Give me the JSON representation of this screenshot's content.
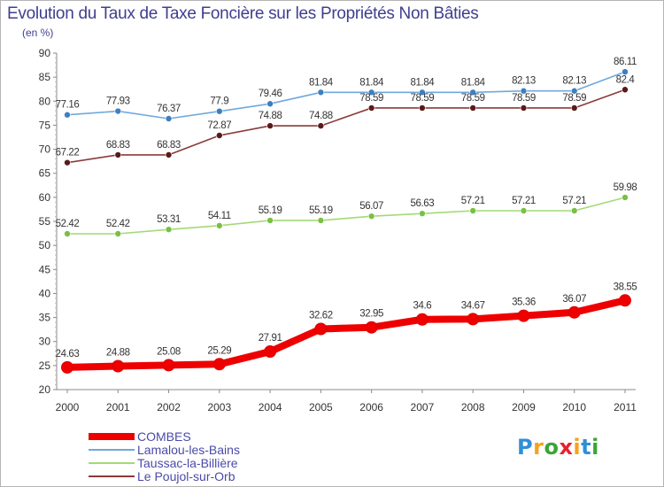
{
  "header": {
    "title": "Evolution du Taux de Taxe Foncière sur les Propriétés Non Bâties",
    "subtitle": "(en %)"
  },
  "logo": {
    "text": "Proxiti",
    "colors": [
      "#2f8fd8",
      "#f7a21b",
      "#3aa535",
      "#e8212e",
      "#f7a21b",
      "#2f8fd8",
      "#3aa535"
    ]
  },
  "chart_data": {
    "type": "line",
    "categories": [
      "2000",
      "2001",
      "2002",
      "2003",
      "2004",
      "2005",
      "2006",
      "2007",
      "2008",
      "2009",
      "2010",
      "2011"
    ],
    "ylim": [
      20,
      90
    ],
    "yticks": [
      "20",
      "25",
      "30",
      "35",
      "40",
      "45",
      "50",
      "55",
      "60",
      "65",
      "70",
      "75",
      "80",
      "85",
      "90"
    ],
    "grid": false,
    "legend_position": "bottom-left",
    "series": [
      {
        "name": "COMBES",
        "color": "#ee0000",
        "marker": "#dd0000",
        "emphasis": true,
        "values": [
          24.63,
          24.88,
          25.08,
          25.29,
          27.91,
          32.62,
          32.95,
          34.6,
          34.67,
          35.36,
          36.07,
          38.55
        ],
        "labels": [
          "24.63",
          "24.88",
          "25.08",
          "25.29",
          "27.91",
          "32.62",
          "32.95",
          "34.6",
          "34.67",
          "35.36",
          "36.07",
          "38.55"
        ]
      },
      {
        "name": "Lamalou-les-Bains",
        "color": "#6fa8dc",
        "marker": "#3d7fc1",
        "emphasis": false,
        "values": [
          77.16,
          77.93,
          76.37,
          77.9,
          79.46,
          81.84,
          81.84,
          81.84,
          81.84,
          82.13,
          82.13,
          86.11
        ],
        "labels": [
          "77.16",
          "77.93",
          "76.37",
          "77.9",
          "79.46",
          "81.84",
          "81.84",
          "81.84",
          "81.84",
          "82.13",
          "82.13",
          "86.11"
        ]
      },
      {
        "name": "Taussac-la-Billière",
        "color": "#a3d977",
        "marker": "#79c043",
        "emphasis": false,
        "values": [
          52.42,
          52.42,
          53.31,
          54.11,
          55.19,
          55.19,
          56.07,
          56.63,
          57.21,
          57.21,
          57.21,
          59.98
        ],
        "labels": [
          "52.42",
          "52.42",
          "53.31",
          "54.11",
          "55.19",
          "55.19",
          "56.07",
          "56.63",
          "57.21",
          "57.21",
          "57.21",
          "59.98"
        ]
      },
      {
        "name": "Le Poujol-sur-Orb",
        "color": "#8a3a3a",
        "marker": "#5a1a1a",
        "emphasis": false,
        "values": [
          67.22,
          68.83,
          68.83,
          72.87,
          74.88,
          74.88,
          78.59,
          78.59,
          78.59,
          78.59,
          78.59,
          82.4
        ],
        "labels": [
          "67.22",
          "68.83",
          "68.83",
          "72.87",
          "74.88",
          "74.88",
          "78.59",
          "78.59",
          "78.59",
          "78.59",
          "78.59",
          "82.4"
        ]
      }
    ]
  }
}
